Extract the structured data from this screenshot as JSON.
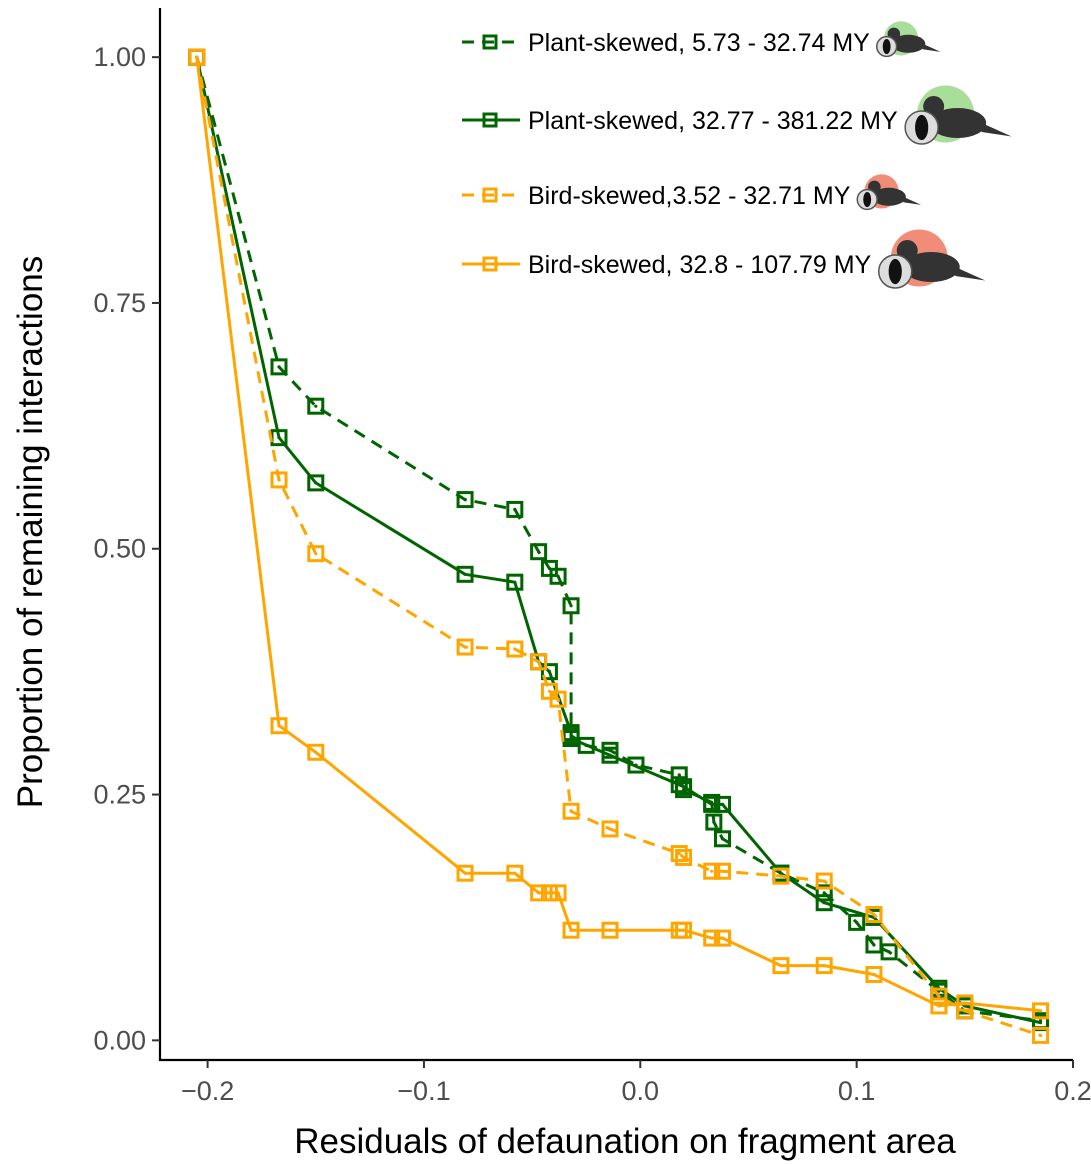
{
  "chart_data": {
    "type": "line",
    "xlabel": "Residuals of defaunation on fragment area",
    "ylabel": "Proportion of remaining interactions",
    "xlim": [
      -0.222,
      0.2
    ],
    "ylim": [
      -0.02,
      1.05
    ],
    "x_ticks": [
      {
        "value": -0.2,
        "label": "−0.2"
      },
      {
        "value": -0.1,
        "label": "−0.1"
      },
      {
        "value": 0.0,
        "label": "0.0"
      },
      {
        "value": 0.1,
        "label": "0.1"
      },
      {
        "value": 0.2,
        "label": "0.2"
      }
    ],
    "y_ticks": [
      {
        "value": 0.0,
        "label": "0.00"
      },
      {
        "value": 0.25,
        "label": "0.25"
      },
      {
        "value": 0.5,
        "label": "0.50"
      },
      {
        "value": 0.75,
        "label": "0.75"
      },
      {
        "value": 1.0,
        "label": "1.00"
      }
    ],
    "grid": false,
    "legend_position": "top-right",
    "series": [
      {
        "name": "Plant-skewed, 5.73 - 32.74 MY",
        "color": "#006400",
        "linestyle": "dashed",
        "icon": "bird-with-seed-small-green-icon",
        "points": [
          [
            -0.205,
            1.0
          ],
          [
            -0.167,
            0.685
          ],
          [
            -0.15,
            0.645
          ],
          [
            -0.081,
            0.55
          ],
          [
            -0.058,
            0.54
          ],
          [
            -0.047,
            0.497
          ],
          [
            -0.042,
            0.48
          ],
          [
            -0.038,
            0.472
          ],
          [
            -0.032,
            0.442
          ],
          [
            -0.032,
            0.31
          ],
          [
            -0.025,
            0.3
          ],
          [
            -0.014,
            0.295
          ],
          [
            -0.002,
            0.28
          ],
          [
            0.018,
            0.27
          ],
          [
            0.02,
            0.255
          ],
          [
            0.033,
            0.242
          ],
          [
            0.034,
            0.222
          ],
          [
            0.038,
            0.205
          ],
          [
            0.065,
            0.17
          ],
          [
            0.085,
            0.15
          ],
          [
            0.1,
            0.12
          ],
          [
            0.108,
            0.097
          ],
          [
            0.115,
            0.09
          ],
          [
            0.138,
            0.05
          ],
          [
            0.15,
            0.03
          ],
          [
            0.185,
            0.02
          ]
        ]
      },
      {
        "name": "Plant-skewed, 32.77 - 381.22 MY",
        "color": "#006400",
        "linestyle": "solid",
        "icon": "bird-with-seed-large-green-icon",
        "points": [
          [
            -0.205,
            1.0
          ],
          [
            -0.167,
            0.613
          ],
          [
            -0.15,
            0.567
          ],
          [
            -0.081,
            0.474
          ],
          [
            -0.058,
            0.466
          ],
          [
            -0.047,
            0.385
          ],
          [
            -0.042,
            0.375
          ],
          [
            -0.032,
            0.313
          ],
          [
            -0.032,
            0.307
          ],
          [
            -0.014,
            0.29
          ],
          [
            0.018,
            0.26
          ],
          [
            0.02,
            0.258
          ],
          [
            0.033,
            0.24
          ],
          [
            0.038,
            0.24
          ],
          [
            0.065,
            0.17
          ],
          [
            0.085,
            0.14
          ],
          [
            0.108,
            0.125
          ],
          [
            0.138,
            0.053
          ],
          [
            0.15,
            0.035
          ],
          [
            0.185,
            0.018
          ]
        ]
      },
      {
        "name": "Bird-skewed,3.52 - 32.71 MY",
        "color": "#FFA500",
        "linestyle": "dashed",
        "icon": "bird-with-seed-small-orange-icon",
        "points": [
          [
            -0.205,
            1.0
          ],
          [
            -0.167,
            0.57
          ],
          [
            -0.15,
            0.495
          ],
          [
            -0.081,
            0.4
          ],
          [
            -0.058,
            0.398
          ],
          [
            -0.047,
            0.385
          ],
          [
            -0.042,
            0.355
          ],
          [
            -0.038,
            0.347
          ],
          [
            -0.032,
            0.233
          ],
          [
            -0.014,
            0.215
          ],
          [
            0.018,
            0.19
          ],
          [
            0.02,
            0.186
          ],
          [
            0.033,
            0.172
          ],
          [
            0.038,
            0.172
          ],
          [
            0.065,
            0.167
          ],
          [
            0.085,
            0.162
          ],
          [
            0.108,
            0.128
          ],
          [
            0.138,
            0.045
          ],
          [
            0.15,
            0.03
          ],
          [
            0.185,
            0.005
          ]
        ]
      },
      {
        "name": "Bird-skewed, 32.8 - 107.79 MY",
        "color": "#FFA500",
        "linestyle": "solid",
        "icon": "bird-with-seed-large-orange-icon",
        "points": [
          [
            -0.205,
            1.0
          ],
          [
            -0.167,
            0.32
          ],
          [
            -0.15,
            0.293
          ],
          [
            -0.081,
            0.17
          ],
          [
            -0.058,
            0.17
          ],
          [
            -0.047,
            0.15
          ],
          [
            -0.042,
            0.15
          ],
          [
            -0.038,
            0.15
          ],
          [
            -0.032,
            0.112
          ],
          [
            -0.014,
            0.112
          ],
          [
            0.018,
            0.112
          ],
          [
            0.02,
            0.112
          ],
          [
            0.033,
            0.104
          ],
          [
            0.038,
            0.104
          ],
          [
            0.065,
            0.076
          ],
          [
            0.085,
            0.076
          ],
          [
            0.108,
            0.067
          ],
          [
            0.138,
            0.035
          ],
          [
            0.15,
            0.038
          ],
          [
            0.185,
            0.03
          ]
        ]
      }
    ]
  }
}
